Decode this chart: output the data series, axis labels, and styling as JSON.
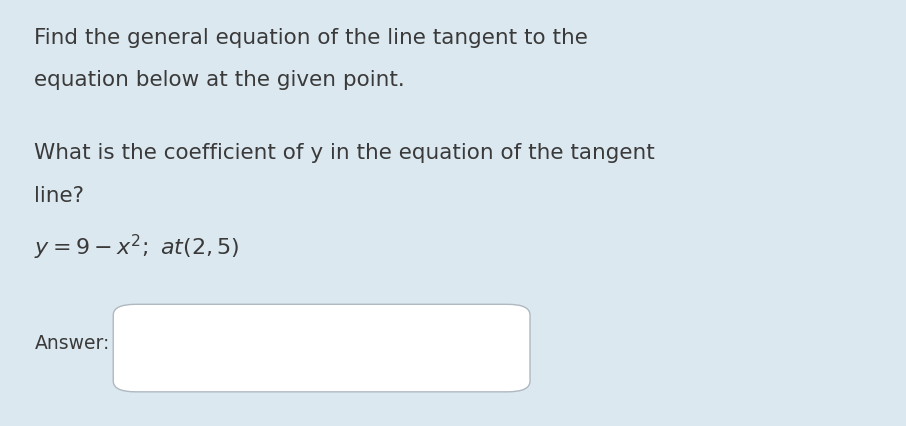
{
  "background_color": "#dce8f0",
  "text_color": "#3a3a3a",
  "para1_line1": "Find the general equation of the line tangent to the",
  "para1_line2": "equation below at the given point.",
  "para2_line1": "What is the coefficient of y in the equation of the tangent",
  "para2_line2": "line?",
  "answer_label": "Answer:",
  "font_size_main": 15.5,
  "font_size_eq": 16,
  "font_size_answer": 13.5
}
